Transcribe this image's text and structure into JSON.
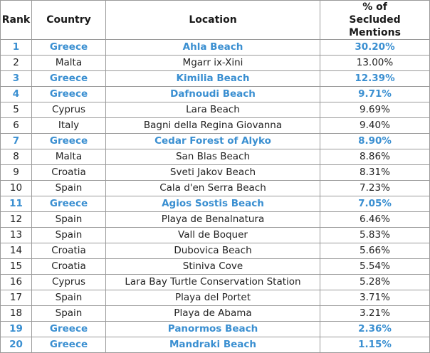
{
  "headers": {
    "rank": "Rank",
    "country": "Country",
    "location": "Location",
    "pct": "% of Secluded Mentions"
  },
  "accent_color": "#3a8fd1",
  "rows": [
    {
      "rank": "1",
      "country": "Greece",
      "location": "Ahla Beach",
      "pct": "30.20%",
      "highlight": true
    },
    {
      "rank": "2",
      "country": "Malta",
      "location": "Mgarr ix-Xini",
      "pct": "13.00%",
      "highlight": false
    },
    {
      "rank": "3",
      "country": "Greece",
      "location": "Kimilia Beach",
      "pct": "12.39%",
      "highlight": true
    },
    {
      "rank": "4",
      "country": "Greece",
      "location": "Dafnoudi Beach",
      "pct": "9.71%",
      "highlight": true
    },
    {
      "rank": "5",
      "country": "Cyprus",
      "location": "Lara Beach",
      "pct": "9.69%",
      "highlight": false
    },
    {
      "rank": "6",
      "country": "Italy",
      "location": "Bagni della Regina Giovanna",
      "pct": "9.40%",
      "highlight": false
    },
    {
      "rank": "7",
      "country": "Greece",
      "location": "Cedar Forest of Alyko",
      "pct": "8.90%",
      "highlight": true
    },
    {
      "rank": "8",
      "country": "Malta",
      "location": "San Blas Beach",
      "pct": "8.86%",
      "highlight": false
    },
    {
      "rank": "9",
      "country": "Croatia",
      "location": "Sveti Jakov Beach",
      "pct": "8.31%",
      "highlight": false
    },
    {
      "rank": "10",
      "country": "Spain",
      "location": "Cala d'en Serra Beach",
      "pct": "7.23%",
      "highlight": false
    },
    {
      "rank": "11",
      "country": "Greece",
      "location": "Agios Sostis Beach",
      "pct": "7.05%",
      "highlight": true
    },
    {
      "rank": "12",
      "country": "Spain",
      "location": "Playa de Benalnatura",
      "pct": "6.46%",
      "highlight": false
    },
    {
      "rank": "13",
      "country": "Spain",
      "location": "Vall de Boquer",
      "pct": "5.83%",
      "highlight": false
    },
    {
      "rank": "14",
      "country": "Croatia",
      "location": "Dubovica Beach",
      "pct": "5.66%",
      "highlight": false
    },
    {
      "rank": "15",
      "country": "Croatia",
      "location": "Stiniva Cove",
      "pct": "5.54%",
      "highlight": false
    },
    {
      "rank": "16",
      "country": "Cyprus",
      "location": "Lara Bay Turtle Conservation Station",
      "pct": "5.28%",
      "highlight": false
    },
    {
      "rank": "17",
      "country": "Spain",
      "location": "Playa del Portet",
      "pct": "3.71%",
      "highlight": false
    },
    {
      "rank": "18",
      "country": "Spain",
      "location": "Playa de Abama",
      "pct": "3.21%",
      "highlight": false
    },
    {
      "rank": "19",
      "country": "Greece",
      "location": "Panormos Beach",
      "pct": "2.36%",
      "highlight": true
    },
    {
      "rank": "20",
      "country": "Greece",
      "location": "Mandraki Beach",
      "pct": "1.15%",
      "highlight": true
    }
  ]
}
